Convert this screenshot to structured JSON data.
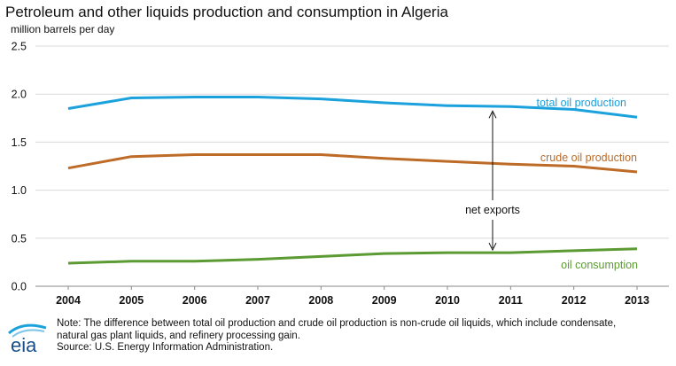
{
  "title": "Petroleum and other liquids production and consumption in Algeria",
  "notes": {
    "line1": "Note: The difference between total oil production and crude oil production is non-crude oil liquids, which include condensate,",
    "line2": "natural gas plant liquids, and refinery processing gain.",
    "source": "Source: U.S. Energy Information Administration."
  },
  "logo": {
    "text": "eia"
  },
  "colors": {
    "total": "#1ba1dc",
    "crude": "#bd6b27",
    "consumption": "#5c9a34",
    "grid": "#d9d9d9",
    "axis": "#888888"
  },
  "chart_data": {
    "type": "line",
    "ylabel": "million barrels per day",
    "xlabel": "",
    "categories": [
      "2004",
      "2005",
      "2006",
      "2007",
      "2008",
      "2009",
      "2010",
      "2011",
      "2012",
      "2013"
    ],
    "ylim": [
      0,
      2.5
    ],
    "yticks": [
      "0.0",
      "0.5",
      "1.0",
      "1.5",
      "2.0",
      "2.5"
    ],
    "grid": true,
    "series": [
      {
        "key": "total",
        "name": "total oil production",
        "values": [
          1.85,
          1.96,
          1.97,
          1.97,
          1.95,
          1.91,
          1.88,
          1.87,
          1.84,
          1.76
        ]
      },
      {
        "key": "crude",
        "name": "crude oil production",
        "values": [
          1.23,
          1.35,
          1.37,
          1.37,
          1.37,
          1.33,
          1.3,
          1.27,
          1.25,
          1.19
        ]
      },
      {
        "key": "consumption",
        "name": "oil consumption",
        "values": [
          0.24,
          0.26,
          0.26,
          0.28,
          0.31,
          0.34,
          0.35,
          0.35,
          0.37,
          0.39
        ]
      }
    ],
    "annotation": {
      "text": "net exports"
    }
  }
}
